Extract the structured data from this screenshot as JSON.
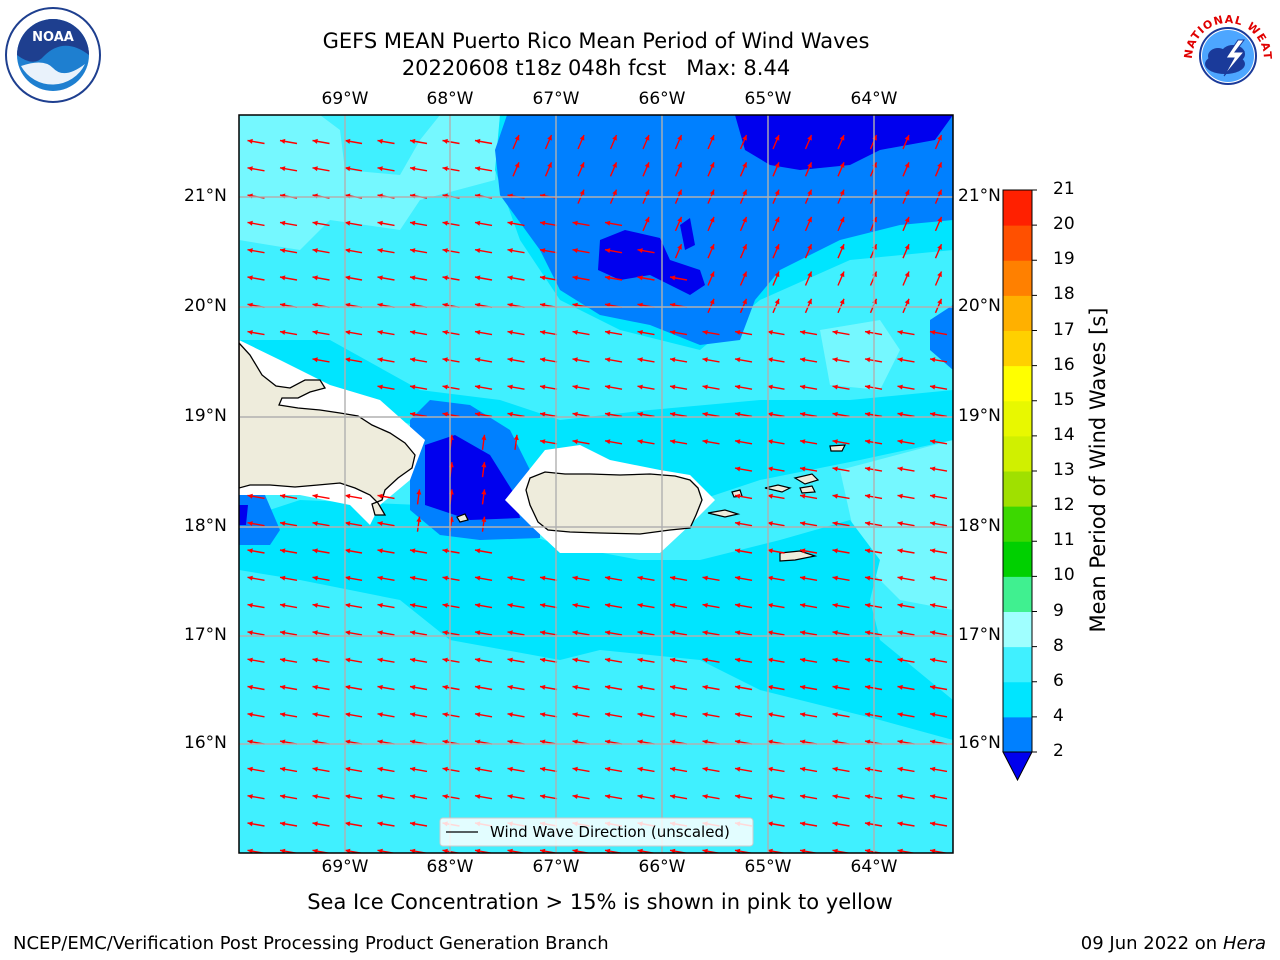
{
  "header": {
    "title": "GEFS MEAN Puerto Rico Mean Period of Wind Waves",
    "subtitle_run": "20220608 t18z 048h fcst",
    "subtitle_max": "Max: 8.44"
  },
  "map": {
    "lon_labels": [
      "69°W",
      "68°W",
      "67°W",
      "66°W",
      "65°W",
      "64°W"
    ],
    "lat_labels": [
      "21°N",
      "20°N",
      "19°N",
      "18°N",
      "17°N",
      "16°N"
    ],
    "legend_label": "Wind Wave Direction (unscaled)",
    "colors": {
      "land": "#eeecdc",
      "arrow": "#ff0000",
      "grid": "#b0b0b0"
    }
  },
  "colorbar": {
    "title": "Mean Period of Wind Waves [s]",
    "ticks": [
      "2",
      "4",
      "6",
      "8",
      "9",
      "10",
      "11",
      "12",
      "13",
      "14",
      "15",
      "16",
      "17",
      "18",
      "19",
      "20",
      "21"
    ],
    "levels": [
      2,
      4,
      6,
      8,
      9,
      10,
      11,
      12,
      13,
      14,
      15,
      16,
      17,
      18,
      19,
      20,
      21
    ],
    "colors": [
      "#0080ff",
      "#00e5ff",
      "#40f0ff",
      "#a0ffff",
      "#40f090",
      "#00d000",
      "#3cd800",
      "#a0e000",
      "#d0f000",
      "#e8f800",
      "#ffff00",
      "#ffd000",
      "#ffb000",
      "#ff8000",
      "#ff5000",
      "#ff2000"
    ],
    "under_color": "#0000ee"
  },
  "caption": "Sea Ice Concentration > 15% is shown in pink to yellow",
  "footer": {
    "left": "NCEP/EMC/Verification Post Processing Product Generation Branch",
    "right_prefix": "09 Jun 2022 on",
    "right_host": "Hera"
  },
  "logos": {
    "noaa": "NOAA",
    "noaa_ring": "NATIONAL OCEANIC AND ATMOSPHERIC ADMINISTRATION · U.S. DEPARTMENT OF COMMERCE",
    "nws": "NATIONAL WEATHER SERVICE"
  }
}
